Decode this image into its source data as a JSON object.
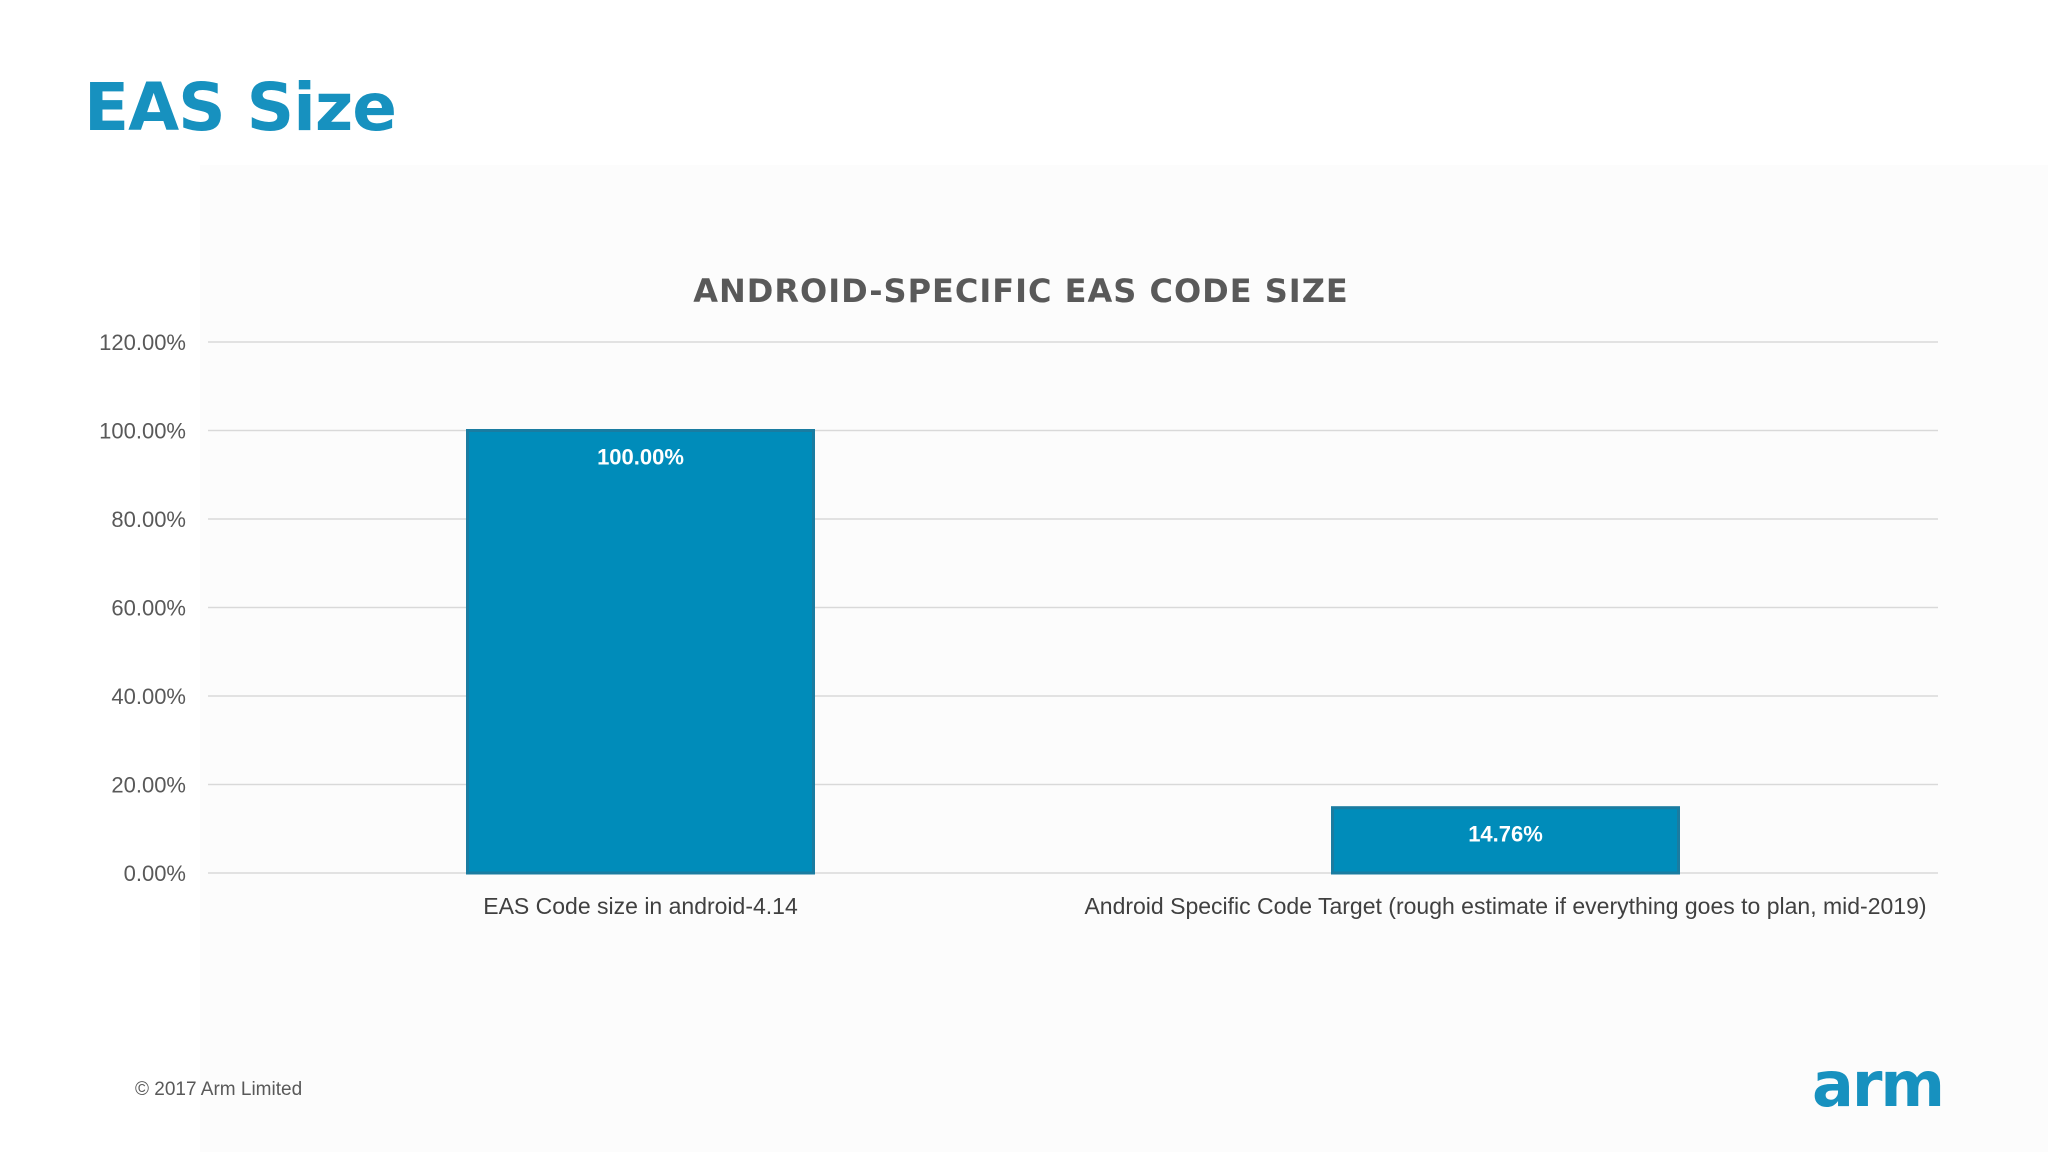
{
  "slide": {
    "title": "EAS Size",
    "copyright": "© 2017 Arm Limited",
    "logo_text": "arm"
  },
  "colors": {
    "title": "#1791bf",
    "bar_fill": "#008cba",
    "bar_stroke": "#1a7ca1",
    "label_text": "#ffffff",
    "gridline": "#d9d9d9"
  },
  "chart_data": {
    "type": "bar",
    "title": "ANDROID-SPECIFIC EAS CODE SIZE",
    "categories": [
      "EAS Code size in android-4.14",
      "Android Specific Code Target (rough estimate if everything goes to plan, mid-2019)"
    ],
    "values": [
      100.0,
      14.76
    ],
    "data_labels": [
      "100.00%",
      "14.76%"
    ],
    "yticks": [
      "0.00%",
      "20.00%",
      "40.00%",
      "60.00%",
      "80.00%",
      "100.00%",
      "120.00%"
    ],
    "ylim": [
      0,
      120
    ],
    "xlabel": "",
    "ylabel": "",
    "grid": true,
    "legend": "none"
  }
}
